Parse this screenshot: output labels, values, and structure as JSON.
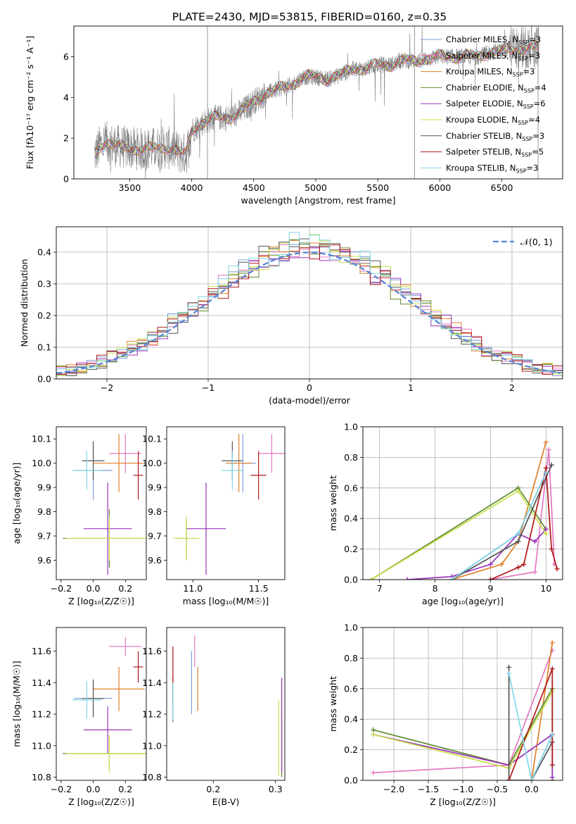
{
  "figure_title": "PLATE=2430, MJD=53815, FIBERID=0160, z=0.35",
  "colors": {
    "Chabrier MILES": "#7aa0d8",
    "Salpeter MILES": "#e377c2",
    "Kroupa MILES": "#e0802a",
    "Chabrier ELODIE": "#5c8a2e",
    "Salpeter ELODIE": "#9933bb",
    "Kroupa ELODIE": "#c8e04a",
    "Chabrier STELIB": "#555555",
    "Salpeter STELIB": "#b01818",
    "Kroupa STELIB": "#80d8e8",
    "data": "#808080",
    "normal": "#5b84d6"
  },
  "chart_data": [
    {
      "id": "spectrum",
      "type": "line",
      "title": "PLATE=2430, MJD=53815, FIBERID=0160, z=0.35",
      "xlabel": "wavelength [Angstrom, rest frame]",
      "ylabel": "Flux [f$_\\lambda$ 10$^{-17}$ erg cm$^{-2}$ s$^{-1}$ A$^{-1}$]",
      "ylabel_text": "Flux [fλ10⁻¹⁷ erg cm⁻² s⁻¹ A⁻¹]",
      "xlim": [
        3050,
        6990
      ],
      "ylim": [
        0,
        7.5
      ],
      "xticks": [
        3500,
        4000,
        4500,
        5000,
        5500,
        6000,
        6500
      ],
      "yticks": [
        0,
        2,
        4,
        6
      ],
      "legend_position": "upper-right",
      "continuum_x": [
        3220,
        3260,
        3300,
        3400,
        3500,
        3600,
        3700,
        3800,
        3870,
        3930,
        3960,
        4000,
        4100,
        4200,
        4300,
        4400,
        4500,
        4600,
        4700,
        4800,
        4900,
        5000,
        5100,
        5200,
        5300,
        5400,
        5500,
        5600,
        5700,
        5800,
        5900,
        6000,
        6100,
        6200,
        6300,
        6400,
        6500,
        6600,
        6700,
        6800
      ],
      "continuum_y": [
        1.2,
        1.6,
        1.8,
        1.6,
        1.5,
        1.45,
        1.5,
        1.55,
        1.4,
        1.2,
        1.3,
        2.4,
        2.8,
        3.0,
        3.0,
        3.3,
        3.8,
        4.2,
        4.4,
        4.6,
        5.0,
        5.0,
        4.9,
        5.1,
        5.4,
        5.4,
        5.6,
        5.6,
        5.8,
        5.8,
        5.9,
        6.0,
        6.0,
        6.0,
        6.0,
        6.2,
        6.3,
        6.4,
        6.4,
        6.5
      ],
      "series": [
        {
          "name": "Chabrier MILES, N$_{SSP}$=3",
          "label": "Chabrier MILES, N",
          "nssp": "=3",
          "color_key": "Chabrier MILES"
        },
        {
          "name": "Salpeter MILES, N$_{SSP}$=3",
          "label": "Salpeter MILES, N",
          "nssp": "=3",
          "color_key": "Salpeter MILES"
        },
        {
          "name": "Kroupa MILES, N$_{SSP}$=3",
          "label": "Kroupa MILES, N",
          "nssp": "=3",
          "color_key": "Kroupa MILES"
        },
        {
          "name": "Chabrier ELODIE, N$_{SSP}$=4",
          "label": "Chabrier ELODIE, N",
          "nssp": "=4",
          "color_key": "Chabrier ELODIE"
        },
        {
          "name": "Salpeter ELODIE, N$_{SSP}$=6",
          "label": "Salpeter ELODIE, N",
          "nssp": "=6",
          "color_key": "Salpeter ELODIE"
        },
        {
          "name": "Kroupa ELODIE, N$_{SSP}$=4",
          "label": "Kroupa ELODIE, N",
          "nssp": "=4",
          "color_key": "Kroupa ELODIE"
        },
        {
          "name": "Chabrier STELIB, N$_{SSP}$=3",
          "label": "Chabrier STELIB, N",
          "nssp": "=3",
          "color_key": "Chabrier STELIB"
        },
        {
          "name": "Salpeter STELIB, N$_{SSP}$=5",
          "label": "Salpeter STELIB, N",
          "nssp": "=5",
          "color_key": "Salpeter STELIB"
        },
        {
          "name": "Kroupa STELIB, N$_{SSP}$=3",
          "label": "Kroupa STELIB, N",
          "nssp": "=3",
          "color_key": "Kroupa STELIB"
        }
      ],
      "legend_subscript": "SSP"
    },
    {
      "id": "residuals",
      "type": "step-histogram",
      "xlabel": "(data-model)/error",
      "ylabel": "Normed distribution",
      "xlim": [
        -2.5,
        2.5
      ],
      "ylim": [
        0,
        0.48
      ],
      "xticks": [
        -2,
        -1,
        0,
        1,
        2
      ],
      "yticks": [
        0.0,
        0.1,
        0.2,
        0.3,
        0.4
      ],
      "grid": true,
      "legend": "$\\mathcal{N}(0,1)$",
      "legend_text": "𝒩(0, 1)",
      "legend_position": "upper-right",
      "bin_width": 0.1,
      "hist_bins_start": -2.5
    },
    {
      "id": "age_Z",
      "type": "errorbar",
      "xlabel": "Z [log$_{10}$(Z/Z$_\\odot$)]",
      "xlabel_text": "Z [log₁₀(Z/Z☉)]",
      "ylabel": "age  [log$_{10}$(age/yr)]",
      "ylabel_text": "age  [log₁₀(age/yr)]",
      "xlim": [
        -0.23,
        0.33
      ],
      "ylim": [
        9.52,
        10.15
      ],
      "xticks": [
        -0.2,
        0.0,
        0.2
      ],
      "yticks": [
        9.6,
        9.7,
        9.8,
        9.9,
        10.0,
        10.1
      ],
      "points": [
        {
          "key": "Chabrier MILES",
          "x": 0.0,
          "y": 9.97,
          "xerr": 0.12,
          "yerr": 0.12
        },
        {
          "key": "Salpeter MILES",
          "x": 0.2,
          "y": 10.04,
          "xerr": 0.1,
          "yerr": 0.08
        },
        {
          "key": "Kroupa MILES",
          "x": 0.16,
          "y": 10.0,
          "xerr": 0.16,
          "yerr": 0.12
        },
        {
          "key": "Chabrier ELODIE",
          "x": 0.1,
          "y": 9.69,
          "xerr": 0.29,
          "yerr": 0.12
        },
        {
          "key": "Salpeter ELODIE",
          "x": 0.09,
          "y": 9.73,
          "xerr": 0.15,
          "yerr": 0.19
        },
        {
          "key": "Kroupa ELODIE",
          "x": 0.1,
          "y": 9.69,
          "xerr": 0.27,
          "yerr": 0.09
        },
        {
          "key": "Chabrier STELIB",
          "x": 0.0,
          "y": 10.01,
          "xerr": 0.07,
          "yerr": 0.08
        },
        {
          "key": "Salpeter STELIB",
          "x": 0.28,
          "y": 9.95,
          "xerr": 0.03,
          "yerr": 0.1
        },
        {
          "key": "Kroupa STELIB",
          "x": -0.04,
          "y": 9.97,
          "xerr": 0.09,
          "yerr": 0.08
        }
      ]
    },
    {
      "id": "age_mass",
      "type": "errorbar",
      "xlabel": "mass [log$_{10}$(M/M$_\\odot$)]",
      "xlabel_text": "mass [log₁₀(M/M☉)]",
      "xlim": [
        10.8,
        11.7
      ],
      "ylim": [
        9.52,
        10.15
      ],
      "xticks": [
        11.0,
        11.5
      ],
      "yticks": [
        9.6,
        9.7,
        9.8,
        9.9,
        10.0,
        10.1
      ],
      "points": [
        {
          "key": "Chabrier MILES",
          "x": 11.38,
          "y": 10.0,
          "xerr": 0.1,
          "yerr": 0.12
        },
        {
          "key": "Salpeter MILES",
          "x": 11.6,
          "y": 10.04,
          "xerr": 0.1,
          "yerr": 0.08
        },
        {
          "key": "Kroupa MILES",
          "x": 11.35,
          "y": 10.0,
          "xerr": 0.1,
          "yerr": 0.12
        },
        {
          "key": "Chabrier ELODIE",
          "x": 10.95,
          "y": 9.69,
          "xerr": 0.08,
          "yerr": 0.08
        },
        {
          "key": "Salpeter ELODIE",
          "x": 11.1,
          "y": 9.73,
          "xerr": 0.15,
          "yerr": 0.19
        },
        {
          "key": "Kroupa ELODIE",
          "x": 10.95,
          "y": 9.69,
          "xerr": 0.1,
          "yerr": 0.09
        },
        {
          "key": "Chabrier STELIB",
          "x": 11.3,
          "y": 10.01,
          "xerr": 0.08,
          "yerr": 0.08
        },
        {
          "key": "Salpeter STELIB",
          "x": 11.5,
          "y": 9.95,
          "xerr": 0.06,
          "yerr": 0.1
        },
        {
          "key": "Kroupa STELIB",
          "x": 11.3,
          "y": 9.97,
          "xerr": 0.08,
          "yerr": 0.08
        }
      ]
    },
    {
      "id": "weight_age",
      "type": "line",
      "xlabel": "age  [log$_{10}$(age/yr)]",
      "xlabel_text": "age  [log₁₀(age/yr)]",
      "ylabel": "mass weight",
      "xlim": [
        6.7,
        10.3
      ],
      "ylim": [
        0,
        1
      ],
      "xticks": [
        7,
        8,
        9,
        10
      ],
      "yticks": [
        0.0,
        0.2,
        0.4,
        0.6,
        0.8,
        1.0
      ],
      "grid": true,
      "series": [
        {
          "key": "Chabrier MILES",
          "x": [
            8.3,
            9.5,
            10.0
          ],
          "y": [
            0.0,
            0.3,
            0.7
          ]
        },
        {
          "key": "Salpeter MILES",
          "x": [
            9.0,
            9.8,
            10.05,
            10.15
          ],
          "y": [
            0.0,
            0.05,
            0.85,
            0.1
          ]
        },
        {
          "key": "Kroupa MILES",
          "x": [
            8.3,
            9.2,
            9.5,
            10.0
          ],
          "y": [
            0.0,
            0.1,
            0.25,
            0.9
          ]
        },
        {
          "key": "Chabrier ELODIE",
          "x": [
            6.85,
            9.5,
            10.0
          ],
          "y": [
            0.0,
            0.6,
            0.33
          ]
        },
        {
          "key": "Salpeter ELODIE",
          "x": [
            7.5,
            8.3,
            9.0,
            9.5,
            9.8,
            10.0
          ],
          "y": [
            0.0,
            0.02,
            0.1,
            0.3,
            0.25,
            0.33
          ]
        },
        {
          "key": "Kroupa ELODIE",
          "x": [
            6.85,
            9.5,
            10.0
          ],
          "y": [
            0.0,
            0.58,
            0.3
          ]
        },
        {
          "key": "Chabrier STELIB",
          "x": [
            8.3,
            9.5,
            10.1
          ],
          "y": [
            0.0,
            0.25,
            0.75
          ]
        },
        {
          "key": "Salpeter STELIB",
          "x": [
            9.0,
            9.5,
            9.6,
            10.0,
            10.1,
            10.2
          ],
          "y": [
            0.0,
            0.08,
            0.1,
            0.73,
            0.2,
            0.07
          ]
        },
        {
          "key": "Kroupa STELIB",
          "x": [
            8.3,
            9.5,
            10.0
          ],
          "y": [
            0.0,
            0.3,
            0.7
          ]
        }
      ]
    },
    {
      "id": "mass_Z",
      "type": "errorbar",
      "xlabel": "Z [log$_{10}$(Z/Z$_\\odot$)]",
      "xlabel_text": "Z [log₁₀(Z/Z☉)]",
      "ylabel": "mass [log$_{10}$(M/M$_\\odot$)]",
      "ylabel_text": "mass [log₁₀(M/M☉)]",
      "xlim": [
        -0.23,
        0.33
      ],
      "ylim": [
        10.78,
        11.75
      ],
      "xticks": [
        -0.2,
        0.0,
        0.2
      ],
      "yticks": [
        10.8,
        11.0,
        11.2,
        11.4,
        11.6
      ],
      "points": [
        {
          "key": "Chabrier MILES",
          "x": 0.0,
          "y": 11.3,
          "xerr": 0.12,
          "yerr": 0.1
        },
        {
          "key": "Salpeter MILES",
          "x": 0.2,
          "y": 11.63,
          "xerr": 0.1,
          "yerr": 0.06
        },
        {
          "key": "Kroupa MILES",
          "x": 0.16,
          "y": 11.36,
          "xerr": 0.16,
          "yerr": 0.14
        },
        {
          "key": "Chabrier ELODIE",
          "x": 0.1,
          "y": 10.95,
          "xerr": 0.29,
          "yerr": 0.1
        },
        {
          "key": "Salpeter ELODIE",
          "x": 0.09,
          "y": 11.1,
          "xerr": 0.15,
          "yerr": 0.15
        },
        {
          "key": "Kroupa ELODIE",
          "x": 0.1,
          "y": 10.95,
          "xerr": 0.27,
          "yerr": 0.12
        },
        {
          "key": "Chabrier STELIB",
          "x": 0.0,
          "y": 11.3,
          "xerr": 0.07,
          "yerr": 0.12
        },
        {
          "key": "Salpeter STELIB",
          "x": 0.28,
          "y": 11.5,
          "xerr": 0.03,
          "yerr": 0.1
        },
        {
          "key": "Kroupa STELIB",
          "x": -0.04,
          "y": 11.29,
          "xerr": 0.09,
          "yerr": 0.12
        }
      ]
    },
    {
      "id": "mass_ebv",
      "type": "errorbar",
      "xlabel": "E(B-V)",
      "xlim": [
        0.125,
        0.315
      ],
      "ylim": [
        10.78,
        11.75
      ],
      "xticks": [
        0.2,
        0.3
      ],
      "yticks": [
        10.8,
        11.0,
        11.2,
        11.4,
        11.6
      ],
      "points": [
        {
          "key": "Chabrier MILES",
          "x": 0.165,
          "y": 11.4,
          "xerr": 0.0,
          "yerr": 0.2
        },
        {
          "key": "Salpeter MILES",
          "x": 0.17,
          "y": 11.6,
          "xerr": 0.0,
          "yerr": 0.1
        },
        {
          "key": "Kroupa MILES",
          "x": 0.175,
          "y": 11.36,
          "xerr": 0.0,
          "yerr": 0.14
        },
        {
          "key": "Chabrier ELODIE",
          "x": 0.31,
          "y": 11.0,
          "xerr": 0.0,
          "yerr": 0.2
        },
        {
          "key": "Salpeter ELODIE",
          "x": 0.31,
          "y": 11.13,
          "xerr": 0.0,
          "yerr": 0.3
        },
        {
          "key": "Kroupa ELODIE",
          "x": 0.305,
          "y": 11.05,
          "xerr": 0.0,
          "yerr": 0.24
        },
        {
          "key": "Chabrier STELIB",
          "x": 0.135,
          "y": 11.3,
          "xerr": 0.0,
          "yerr": 0.15
        },
        {
          "key": "Salpeter STELIB",
          "x": 0.135,
          "y": 11.45,
          "xerr": 0.0,
          "yerr": 0.18
        },
        {
          "key": "Kroupa STELIB",
          "x": 0.135,
          "y": 11.28,
          "xerr": 0.0,
          "yerr": 0.12
        }
      ]
    },
    {
      "id": "weight_Z",
      "type": "line",
      "xlabel": "Z [log$_{10}$(Z/Z$_\\odot$)]",
      "xlabel_text": "Z [log₁₀(Z/Z☉)]",
      "ylabel": "mass weight",
      "xlim": [
        -2.45,
        0.45
      ],
      "ylim": [
        0,
        1
      ],
      "xticks": [
        -2.0,
        -1.5,
        -1.0,
        -0.5,
        0.0
      ],
      "yticks": [
        0.0,
        0.2,
        0.4,
        0.6,
        0.8,
        1.0
      ],
      "grid": true,
      "series": [
        {
          "key": "Chabrier MILES",
          "x": [
            -0.33,
            0.0,
            0.3
          ],
          "y": [
            0.0,
            0.0,
            0.3
          ]
        },
        {
          "key": "Salpeter MILES",
          "x": [
            -2.3,
            -0.33,
            0.3
          ],
          "y": [
            0.05,
            0.1,
            0.85
          ]
        },
        {
          "key": "Kroupa MILES",
          "x": [
            -0.33,
            0.0,
            0.3
          ],
          "y": [
            0.0,
            0.0,
            0.9
          ]
        },
        {
          "key": "Chabrier ELODIE",
          "x": [
            -2.3,
            -0.33,
            0.3,
            0.3
          ],
          "y": [
            0.33,
            0.1,
            0.6,
            0.0
          ]
        },
        {
          "key": "Salpeter ELODIE",
          "x": [
            -2.3,
            -0.33,
            0.3,
            0.3
          ],
          "y": [
            0.3,
            0.1,
            0.3,
            0.02
          ]
        },
        {
          "key": "Kroupa ELODIE",
          "x": [
            -2.3,
            -0.33,
            0.3
          ],
          "y": [
            0.3,
            0.08,
            0.58
          ]
        },
        {
          "key": "Chabrier STELIB",
          "x": [
            -0.33,
            -0.33,
            0.0,
            0.3
          ],
          "y": [
            0.74,
            0.0,
            0.0,
            0.25
          ]
        },
        {
          "key": "Salpeter STELIB",
          "x": [
            -0.33,
            0.3,
            0.3,
            0.3
          ],
          "y": [
            0.0,
            0.73,
            0.1,
            0.3
          ]
        },
        {
          "key": "Kroupa STELIB",
          "x": [
            -0.33,
            0.0,
            0.3
          ],
          "y": [
            0.7,
            0.0,
            0.3
          ]
        }
      ]
    }
  ]
}
